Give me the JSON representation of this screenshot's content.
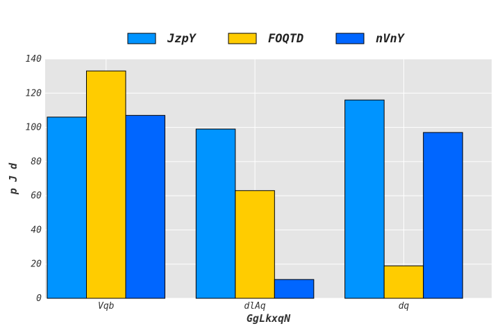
{
  "chart_data": {
    "type": "bar",
    "title": "",
    "xlabel": "GgLkxqN",
    "ylabel": "p J d",
    "categories": [
      "Vqb",
      "dlAq",
      "dq"
    ],
    "series": [
      {
        "name": "JzpY",
        "color": "#0094ff",
        "values": [
          106,
          99,
          116
        ]
      },
      {
        "name": "FOQTD",
        "color": "#ffcc00",
        "values": [
          133,
          63,
          19
        ]
      },
      {
        "name": "nVnY",
        "color": "#0066ff",
        "values": [
          107,
          11,
          97
        ]
      }
    ],
    "ylim": [
      0,
      140
    ],
    "yticks": [
      0,
      20,
      40,
      60,
      80,
      100,
      120,
      140
    ],
    "grid": true,
    "legend_position": "top-center",
    "background_color": "#e5e5e5",
    "grid_color": "#ffffff"
  }
}
